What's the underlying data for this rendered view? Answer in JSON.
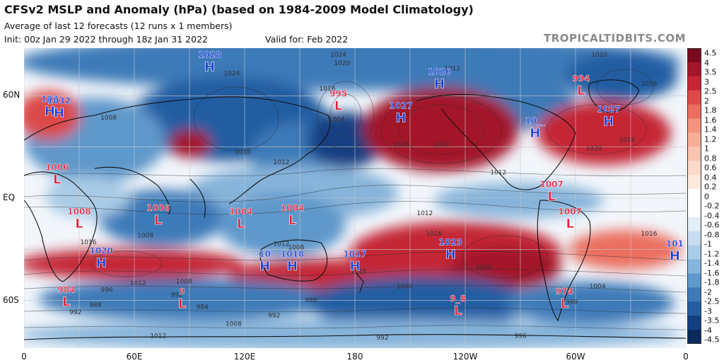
{
  "header": {
    "title": "CFSv2 MSLP and Anomaly (hPa) (based on 1984-2009 Model Climatology)",
    "subtitle": "Average of last 12 forecasts (12 runs x 1 members)",
    "init": "Init: 00z Jan 29 2022 through 18z Jan 31 2022",
    "valid": "Valid for: Feb 2022",
    "watermark": "TROPICALTIDBITS.COM"
  },
  "axes": {
    "lat_labels": [
      {
        "label": "60N",
        "lat": 60
      },
      {
        "label": "EQ",
        "lat": 0
      },
      {
        "label": "60S",
        "lat": -60
      }
    ],
    "lon_labels": [
      {
        "label": "0",
        "lon": 0
      },
      {
        "label": "60E",
        "lon": 60
      },
      {
        "label": "120E",
        "lon": 120
      },
      {
        "label": "180",
        "lon": 180
      },
      {
        "label": "120W",
        "lon": 240
      },
      {
        "label": "60W",
        "lon": 300
      },
      {
        "label": "0",
        "lon": 360
      }
    ]
  },
  "colorbar": {
    "ticks": [
      "4.5",
      "4",
      "3.5",
      "3",
      "2.5",
      "2",
      "1.8",
      "1.6",
      "1.4",
      "1.2",
      "1",
      "0.8",
      "0.6",
      "0.4",
      "0.2",
      "0",
      "-0.2",
      "-0.4",
      "-0.6",
      "-0.8",
      "-1",
      "-1.2",
      "-1.4",
      "-1.6",
      "-1.8",
      "-2",
      "-2.5",
      "-3",
      "-3.5",
      "-4",
      "-4.5"
    ],
    "colors": [
      "#7a0a1e",
      "#a3162a",
      "#c42636",
      "#dc4a48",
      "#eb6e5e",
      "#f4927e",
      "#f8ad98",
      "#fbc4b1",
      "#fdd9c9",
      "#fee9de",
      "#ffffff",
      "#ffffff",
      "#e3eef7",
      "#c8def0",
      "#a9cbe6",
      "#86b4da",
      "#5f98cb",
      "#3d7ab8",
      "#245da2",
      "#123f82",
      "#0a2a5c"
    ]
  },
  "centers": [
    {
      "type": "H",
      "value": "1028",
      "lon": 101,
      "lat": 80
    },
    {
      "type": "H",
      "value": "103",
      "lon": 14,
      "lat": 54
    },
    {
      "type": "H",
      "value": "1032",
      "lon": 19,
      "lat": 53
    },
    {
      "type": "L",
      "value": "995",
      "lon": 171,
      "lat": 57
    },
    {
      "type": "H",
      "value": "1027",
      "lon": 205,
      "lat": 50
    },
    {
      "type": "H",
      "value": "1026",
      "lon": 226,
      "lat": 70
    },
    {
      "type": "L",
      "value": "994",
      "lon": 303,
      "lat": 66
    },
    {
      "type": "H",
      "value": "1027",
      "lon": 318,
      "lat": 48
    },
    {
      "type": "H",
      "value": "10__",
      "lon": 278,
      "lat": 41
    },
    {
      "type": "L",
      "value": "1006",
      "lon": 18,
      "lat": 14
    },
    {
      "type": "L",
      "value": "1007",
      "lon": 287,
      "lat": 4
    },
    {
      "type": "L",
      "value": "1006",
      "lon": 73,
      "lat": -10
    },
    {
      "type": "L",
      "value": "1008",
      "lon": 30,
      "lat": -12
    },
    {
      "type": "L",
      "value": "1004",
      "lon": 118,
      "lat": -12
    },
    {
      "type": "L",
      "value": "1004",
      "lon": 146,
      "lat": -10
    },
    {
      "type": "L",
      "value": "1007",
      "lon": 297,
      "lat": -12
    },
    {
      "type": "H",
      "value": "1020",
      "lon": 42,
      "lat": -35
    },
    {
      "type": "H",
      "value": "10",
      "lon": 131,
      "lat": -37
    },
    {
      "type": "H",
      "value": "1018",
      "lon": 146,
      "lat": -37
    },
    {
      "type": "H",
      "value": "1017",
      "lon": 180,
      "lat": -37
    },
    {
      "type": "H",
      "value": "1023",
      "lon": 232,
      "lat": -30
    },
    {
      "type": "H",
      "value": "101",
      "lon": 354,
      "lat": -31
    },
    {
      "type": "L",
      "value": "984",
      "lon": 23,
      "lat": -58
    },
    {
      "type": "L",
      "value": "9",
      "lon": 86,
      "lat": -59
    },
    {
      "type": "L",
      "value": "9_8",
      "lon": 236,
      "lat": -63
    },
    {
      "type": "L",
      "value": "974",
      "lon": 294,
      "lat": -59
    }
  ],
  "contour_labels": [
    {
      "value": "1024",
      "lon": 171,
      "lat": 83
    },
    {
      "value": "1020",
      "lon": 173,
      "lat": 78
    },
    {
      "value": "1020",
      "lon": 313,
      "lat": 83
    },
    {
      "value": "1024",
      "lon": 113,
      "lat": 72
    },
    {
      "value": "1016",
      "lon": 165,
      "lat": 63
    },
    {
      "value": "1012",
      "lon": 233,
      "lat": 75
    },
    {
      "value": "1016",
      "lon": 340,
      "lat": 66
    },
    {
      "value": "1004",
      "lon": 170,
      "lat": 45
    },
    {
      "value": "1008",
      "lon": 46,
      "lat": 46
    },
    {
      "value": "1020",
      "lon": 205,
      "lat": 30
    },
    {
      "value": "1012",
      "lon": 227,
      "lat": 30
    },
    {
      "value": "1016",
      "lon": 328,
      "lat": 33
    },
    {
      "value": "1020",
      "lon": 310,
      "lat": 28
    },
    {
      "value": "1016",
      "lon": 119,
      "lat": 26
    },
    {
      "value": "1012",
      "lon": 140,
      "lat": 20
    },
    {
      "value": "1012",
      "lon": 258,
      "lat": 14
    },
    {
      "value": "1012",
      "lon": 218,
      "lat": -10
    },
    {
      "value": "1016",
      "lon": 223,
      "lat": -22
    },
    {
      "value": "1016",
      "lon": 340,
      "lat": -22
    },
    {
      "value": "1008",
      "lon": 66,
      "lat": -23
    },
    {
      "value": "1016",
      "lon": 35,
      "lat": -27
    },
    {
      "value": "1012",
      "lon": 140,
      "lat": -28
    },
    {
      "value": "1008",
      "lon": 148,
      "lat": -30
    },
    {
      "value": "1016",
      "lon": 182,
      "lat": -44
    },
    {
      "value": "1020",
      "lon": 250,
      "lat": -42
    },
    {
      "value": "1008",
      "lon": 87,
      "lat": -50
    },
    {
      "value": "1012",
      "lon": 62,
      "lat": -51
    },
    {
      "value": "1004",
      "lon": 312,
      "lat": -53
    },
    {
      "value": "1000",
      "lon": 207,
      "lat": -53
    },
    {
      "value": "992",
      "lon": 83,
      "lat": -58
    },
    {
      "value": "988",
      "lon": 39,
      "lat": -64
    },
    {
      "value": "992",
      "lon": 28,
      "lat": -68
    },
    {
      "value": "984",
      "lon": 97,
      "lat": -65
    },
    {
      "value": "996",
      "lon": 45,
      "lat": -55
    },
    {
      "value": "988",
      "lon": 156,
      "lat": -61
    },
    {
      "value": "992",
      "lon": 136,
      "lat": -70
    },
    {
      "value": "1008",
      "lon": 114,
      "lat": -75
    },
    {
      "value": "988",
      "lon": 298,
      "lat": -62
    },
    {
      "value": "996",
      "lon": 270,
      "lat": -82
    },
    {
      "value": "1012",
      "lon": 73,
      "lat": -82
    },
    {
      "value": "992",
      "lon": 195,
      "lat": -83
    }
  ]
}
